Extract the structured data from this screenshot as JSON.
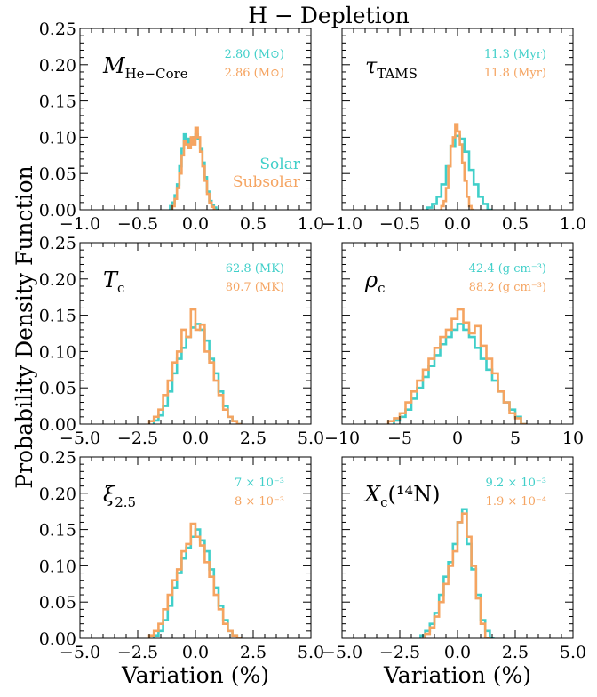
{
  "figure": {
    "title": "H − Depletion",
    "ylabel": "Probability Density Function",
    "xlabel": "Variation (%)"
  },
  "colors": {
    "solar": "#40CFC9",
    "subsolar": "#F5A461"
  },
  "legend": {
    "solar": "Solar",
    "subsolar": "Subsolar"
  },
  "chart_data": [
    {
      "type": "histogram",
      "panel": "M_He-Core",
      "label_main": "M",
      "label_sub": "He−Core",
      "label_sup": "",
      "xlim": [
        -1.0,
        1.0
      ],
      "ylim": [
        0,
        0.25
      ],
      "xticks": [
        -1.0,
        -0.5,
        0.0,
        0.5,
        1.0
      ],
      "xtick_labels": [
        "−1.0",
        "−0.5",
        "0.0",
        "0.5",
        "1.0"
      ],
      "yticks": [
        0,
        0.05,
        0.1,
        0.15,
        0.2,
        0.25
      ],
      "ytick_labels": [
        "0.00",
        "0.05",
        "0.10",
        "0.15",
        "0.20",
        "0.25"
      ],
      "annotations": {
        "solar": "2.80 (M⊙)",
        "subsolar": "2.86 (M⊙)"
      },
      "show_legend": true,
      "series": [
        {
          "name": "Solar",
          "x": [
            -0.22,
            -0.2,
            -0.18,
            -0.16,
            -0.14,
            -0.12,
            -0.1,
            -0.08,
            -0.06,
            -0.04,
            -0.02,
            0.0,
            0.02,
            0.04,
            0.06,
            0.08,
            0.1,
            0.12,
            0.14,
            0.16,
            0.18
          ],
          "values": [
            0.005,
            0.01,
            0.02,
            0.035,
            0.06,
            0.085,
            0.104,
            0.098,
            0.09,
            0.098,
            0.1,
            0.104,
            0.098,
            0.085,
            0.065,
            0.045,
            0.025,
            0.012,
            0.006,
            0.003,
            0.0
          ]
        },
        {
          "name": "Subsolar",
          "x": [
            -0.2,
            -0.18,
            -0.16,
            -0.14,
            -0.12,
            -0.1,
            -0.08,
            -0.06,
            -0.04,
            -0.02,
            0.0,
            0.02,
            0.04,
            0.06,
            0.08,
            0.1,
            0.12,
            0.14,
            0.16
          ],
          "values": [
            0.005,
            0.015,
            0.03,
            0.05,
            0.075,
            0.095,
            0.09,
            0.085,
            0.1,
            0.09,
            0.113,
            0.1,
            0.08,
            0.06,
            0.04,
            0.022,
            0.01,
            0.004,
            0.0
          ]
        }
      ]
    },
    {
      "type": "histogram",
      "panel": "tau_TAMS",
      "label_main": "τ",
      "label_sub": "TAMS",
      "label_sup": "",
      "xlim": [
        -1.0,
        1.0
      ],
      "ylim": [
        0,
        0.25
      ],
      "xticks": [
        -1.0,
        -0.5,
        0.0,
        0.5,
        1.0
      ],
      "xtick_labels": [
        "−1.0",
        "−0.5",
        "0.0",
        "0.5",
        "1.0"
      ],
      "yticks": [
        0,
        0.05,
        0.1,
        0.15,
        0.2,
        0.25
      ],
      "ytick_labels": [
        "",
        "",
        "",
        "",
        "",
        ""
      ],
      "annotations": {
        "solar": "11.3 (Myr)",
        "subsolar": "11.8 (Myr)"
      },
      "show_legend": false,
      "series": [
        {
          "name": "Solar",
          "x": [
            -0.26,
            -0.22,
            -0.18,
            -0.14,
            -0.1,
            -0.06,
            -0.02,
            0.02,
            0.06,
            0.1,
            0.14,
            0.18,
            0.22,
            0.26
          ],
          "values": [
            0.003,
            0.008,
            0.018,
            0.035,
            0.06,
            0.088,
            0.102,
            0.098,
            0.08,
            0.055,
            0.035,
            0.018,
            0.008,
            0.0
          ]
        },
        {
          "name": "Subsolar",
          "x": [
            -0.14,
            -0.12,
            -0.1,
            -0.08,
            -0.06,
            -0.04,
            -0.02,
            0.0,
            0.02,
            0.04,
            0.06,
            0.08,
            0.1,
            0.12
          ],
          "values": [
            0.005,
            0.012,
            0.03,
            0.06,
            0.088,
            0.1,
            0.118,
            0.108,
            0.09,
            0.065,
            0.04,
            0.018,
            0.005,
            0.0
          ]
        }
      ]
    },
    {
      "type": "histogram",
      "panel": "T_c",
      "label_main": "T",
      "label_sub": "c",
      "label_sup": "",
      "xlim": [
        -5.0,
        5.0
      ],
      "ylim": [
        0,
        0.25
      ],
      "xticks": [
        -5.0,
        -2.5,
        0.0,
        2.5,
        5.0
      ],
      "xtick_labels": [
        "−5.0",
        "−2.5",
        "0.0",
        "2.5",
        "5.0"
      ],
      "yticks": [
        0,
        0.05,
        0.1,
        0.15,
        0.2,
        0.25
      ],
      "ytick_labels": [
        "0.00",
        "0.05",
        "0.10",
        "0.15",
        "0.20",
        "0.25"
      ],
      "annotations": {
        "solar": "62.8 (MK)",
        "subsolar": "80.7 (MK)"
      },
      "show_legend": false,
      "series": [
        {
          "name": "Solar",
          "x": [
            -1.8,
            -1.6,
            -1.4,
            -1.2,
            -1.0,
            -0.8,
            -0.6,
            -0.4,
            -0.2,
            0.0,
            0.2,
            0.4,
            0.6,
            0.8,
            1.0,
            1.2,
            1.4,
            1.6,
            1.8
          ],
          "values": [
            0.005,
            0.012,
            0.025,
            0.045,
            0.07,
            0.09,
            0.105,
            0.12,
            0.133,
            0.138,
            0.13,
            0.115,
            0.09,
            0.07,
            0.045,
            0.025,
            0.01,
            0.004,
            0.0
          ]
        },
        {
          "name": "Subsolar",
          "x": [
            -2.0,
            -1.8,
            -1.6,
            -1.4,
            -1.2,
            -1.0,
            -0.8,
            -0.6,
            -0.4,
            -0.2,
            0.0,
            0.2,
            0.4,
            0.6,
            0.8,
            1.0,
            1.2,
            1.4,
            1.6,
            1.8
          ],
          "values": [
            0.004,
            0.01,
            0.02,
            0.04,
            0.06,
            0.085,
            0.1,
            0.13,
            0.12,
            0.158,
            0.13,
            0.137,
            0.1,
            0.085,
            0.06,
            0.04,
            0.02,
            0.01,
            0.004,
            0.0
          ]
        }
      ]
    },
    {
      "type": "histogram",
      "panel": "rho_c",
      "label_main": "ρ",
      "label_sub": "c",
      "label_sup": "",
      "xlim": [
        -10,
        10
      ],
      "ylim": [
        0,
        0.25
      ],
      "xticks": [
        -10,
        -5,
        0,
        5,
        10
      ],
      "xtick_labels": [
        "−10",
        "−5",
        "0",
        "5",
        "10"
      ],
      "yticks": [
        0,
        0.05,
        0.1,
        0.15,
        0.2,
        0.25
      ],
      "ytick_labels": [
        "",
        "",
        "",
        "",
        "",
        ""
      ],
      "annotations": {
        "solar": "42.4 (g cm⁻³)",
        "subsolar": "88.2 (g cm⁻³)"
      },
      "show_legend": false,
      "series": [
        {
          "name": "Solar",
          "x": [
            -5.5,
            -5.0,
            -4.5,
            -4.0,
            -3.5,
            -3.0,
            -2.5,
            -2.0,
            -1.5,
            -1.0,
            -0.5,
            0.0,
            0.5,
            1.0,
            1.5,
            2.0,
            2.5,
            3.0,
            3.5,
            4.0,
            4.5,
            5.0,
            5.5
          ],
          "values": [
            0.005,
            0.01,
            0.02,
            0.035,
            0.05,
            0.065,
            0.08,
            0.095,
            0.11,
            0.12,
            0.13,
            0.138,
            0.13,
            0.12,
            0.105,
            0.09,
            0.075,
            0.06,
            0.045,
            0.03,
            0.02,
            0.01,
            0.0
          ]
        },
        {
          "name": "Subsolar",
          "x": [
            -6.0,
            -5.5,
            -5.0,
            -4.5,
            -4.0,
            -3.5,
            -3.0,
            -2.5,
            -2.0,
            -1.5,
            -1.0,
            -0.5,
            0.0,
            0.5,
            1.0,
            1.5,
            2.0,
            2.5,
            3.0,
            3.5,
            4.0,
            4.5,
            5.0,
            5.5
          ],
          "values": [
            0.004,
            0.008,
            0.015,
            0.03,
            0.045,
            0.06,
            0.075,
            0.09,
            0.105,
            0.12,
            0.13,
            0.145,
            0.158,
            0.14,
            0.125,
            0.135,
            0.108,
            0.09,
            0.07,
            0.045,
            0.03,
            0.015,
            0.008,
            0.0
          ]
        }
      ]
    },
    {
      "type": "histogram",
      "panel": "xi_2.5",
      "label_main": "ξ",
      "label_sub": "2.5",
      "label_sup": "",
      "xlim": [
        -5.0,
        5.0
      ],
      "ylim": [
        0,
        0.25
      ],
      "xticks": [
        -5.0,
        -2.5,
        0.0,
        2.5,
        5.0
      ],
      "xtick_labels": [
        "−5.0",
        "−2.5",
        "0.0",
        "2.5",
        "5.0"
      ],
      "yticks": [
        0,
        0.05,
        0.1,
        0.15,
        0.2,
        0.25
      ],
      "ytick_labels": [
        "0.00",
        "0.05",
        "0.10",
        "0.15",
        "0.20",
        "0.25"
      ],
      "annotations": {
        "solar": "7 × 10⁻³",
        "subsolar": "8 × 10⁻³"
      },
      "show_legend": false,
      "series": [
        {
          "name": "Solar",
          "x": [
            -1.8,
            -1.6,
            -1.4,
            -1.2,
            -1.0,
            -0.8,
            -0.6,
            -0.4,
            -0.2,
            0.0,
            0.2,
            0.4,
            0.6,
            0.8,
            1.0,
            1.2,
            1.4,
            1.6,
            1.8
          ],
          "values": [
            0.004,
            0.01,
            0.025,
            0.045,
            0.07,
            0.09,
            0.11,
            0.125,
            0.14,
            0.15,
            0.135,
            0.12,
            0.095,
            0.07,
            0.045,
            0.025,
            0.01,
            0.004,
            0.0
          ]
        },
        {
          "name": "Subsolar",
          "x": [
            -2.0,
            -1.8,
            -1.6,
            -1.4,
            -1.2,
            -1.0,
            -0.8,
            -0.6,
            -0.4,
            -0.2,
            0.0,
            0.2,
            0.4,
            0.6,
            0.8,
            1.0,
            1.2,
            1.4,
            1.6,
            1.8
          ],
          "values": [
            0.004,
            0.01,
            0.02,
            0.04,
            0.06,
            0.08,
            0.095,
            0.12,
            0.13,
            0.158,
            0.14,
            0.128,
            0.105,
            0.085,
            0.06,
            0.04,
            0.02,
            0.01,
            0.004,
            0.0
          ]
        }
      ]
    },
    {
      "type": "histogram",
      "panel": "X_c(14N)",
      "label_main": "X",
      "label_sub": "c",
      "label_sup": "(¹⁴N)",
      "xlim": [
        -5.0,
        5.0
      ],
      "ylim": [
        0,
        0.25
      ],
      "xticks": [
        -5.0,
        -2.5,
        0.0,
        2.5,
        5.0
      ],
      "xtick_labels": [
        "−5.0",
        "−2.5",
        "0.0",
        "2.5",
        "5.0"
      ],
      "yticks": [
        0,
        0.05,
        0.1,
        0.15,
        0.2,
        0.25
      ],
      "ytick_labels": [
        "",
        "",
        "",
        "",
        "",
        ""
      ],
      "annotations": {
        "solar": "9.2 × 10⁻³",
        "subsolar": "1.9 × 10⁻⁴"
      },
      "show_legend": false,
      "series": [
        {
          "name": "Solar",
          "x": [
            -1.6,
            -1.4,
            -1.2,
            -1.0,
            -0.8,
            -0.6,
            -0.4,
            -0.2,
            0.0,
            0.2,
            0.4,
            0.6,
            0.8,
            1.0,
            1.2,
            1.4
          ],
          "values": [
            0.004,
            0.01,
            0.02,
            0.035,
            0.06,
            0.085,
            0.105,
            0.13,
            0.16,
            0.178,
            0.13,
            0.095,
            0.06,
            0.025,
            0.01,
            0.0
          ]
        },
        {
          "name": "Subsolar",
          "x": [
            -1.4,
            -1.2,
            -1.0,
            -0.8,
            -0.6,
            -0.4,
            -0.2,
            0.0,
            0.2,
            0.4,
            0.6,
            0.8,
            1.0,
            1.2
          ],
          "values": [
            0.006,
            0.015,
            0.03,
            0.05,
            0.075,
            0.1,
            0.12,
            0.16,
            0.172,
            0.14,
            0.1,
            0.055,
            0.02,
            0.0
          ]
        }
      ]
    }
  ]
}
